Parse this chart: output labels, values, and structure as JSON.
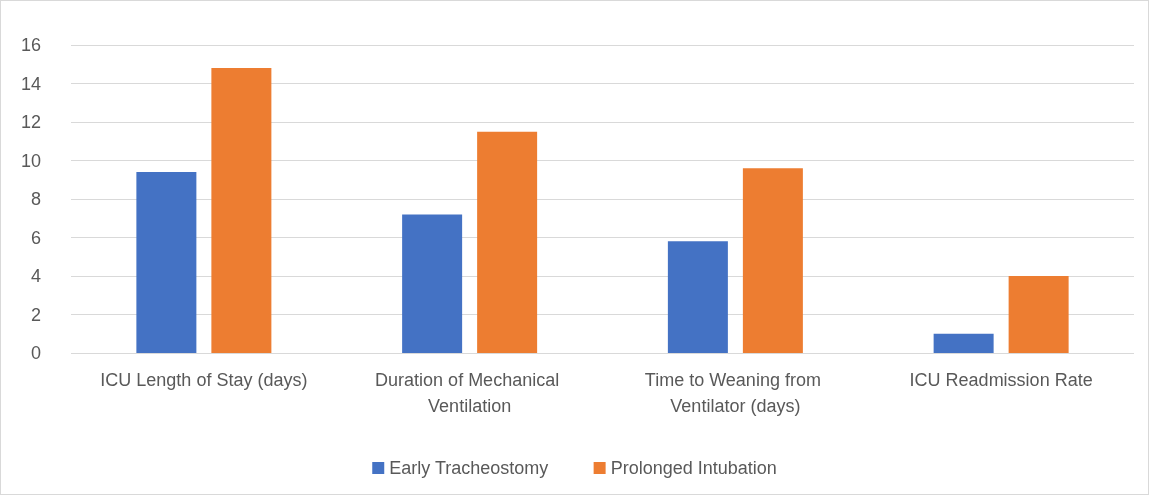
{
  "chart_data": {
    "type": "bar",
    "categories": [
      "ICU Length of Stay (days)",
      "Duration of Mechanical Ventilation",
      "Time to Weaning from Ventilator (days)",
      "ICU Readmission Rate"
    ],
    "series": [
      {
        "name": "Early Tracheostomy",
        "color": "#4472c4",
        "values": [
          9.4,
          7.2,
          5.8,
          1.0
        ]
      },
      {
        "name": "Prolonged Intubation",
        "color": "#ed7d31",
        "values": [
          14.8,
          11.5,
          9.6,
          4.0
        ]
      }
    ],
    "ylim": [
      0,
      16
    ],
    "yticks": [
      0,
      2,
      4,
      6,
      8,
      10,
      12,
      14,
      16
    ],
    "grid": "y",
    "legend": "bottom"
  }
}
